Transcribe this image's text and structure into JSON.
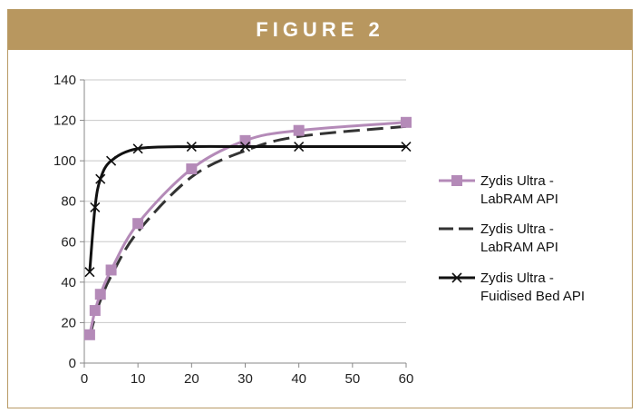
{
  "figure_label": "FIGURE 2",
  "colors": {
    "banner": "#b8975f",
    "series_purple": "#b48ab8",
    "series_dash": "#333333",
    "series_black": "#111111"
  },
  "chart_data": {
    "type": "line",
    "title": "",
    "xlabel": "",
    "ylabel": "",
    "xlim": [
      0,
      60
    ],
    "ylim": [
      0,
      140
    ],
    "x_ticks": [
      0,
      10,
      20,
      30,
      40,
      50,
      60
    ],
    "y_ticks": [
      0,
      20,
      40,
      60,
      80,
      100,
      120,
      140
    ],
    "grid": "horizontal",
    "legend_position": "right",
    "series": [
      {
        "name": "Zydis Ultra - LabRAM API",
        "legend_lines": [
          "Zydis Ultra -",
          "LabRAM API"
        ],
        "style": "solid-square-marker",
        "color": "#b48ab8",
        "x": [
          1,
          2,
          3,
          5,
          10,
          20,
          30,
          40,
          60
        ],
        "y": [
          14,
          26,
          34,
          46,
          69,
          96,
          110,
          115,
          119
        ]
      },
      {
        "name": "Zydis Ultra - LabRAM API",
        "legend_lines": [
          "Zydis Ultra -",
          "LabRAM API"
        ],
        "style": "dashed",
        "color": "#333333",
        "x": [
          1,
          2,
          3,
          5,
          10,
          20,
          30,
          40,
          60
        ],
        "y": [
          13,
          23,
          31,
          43,
          65,
          92,
          105,
          112,
          117
        ]
      },
      {
        "name": "Zydis Ultra - Fuidised Bed API",
        "legend_lines": [
          "Zydis Ultra -",
          "Fuidised Bed API"
        ],
        "style": "solid-x-marker",
        "color": "#111111",
        "x": [
          1,
          2,
          3,
          5,
          10,
          20,
          30,
          40,
          60
        ],
        "y": [
          45,
          77,
          91,
          100,
          106,
          107,
          107,
          107,
          107
        ]
      }
    ]
  }
}
